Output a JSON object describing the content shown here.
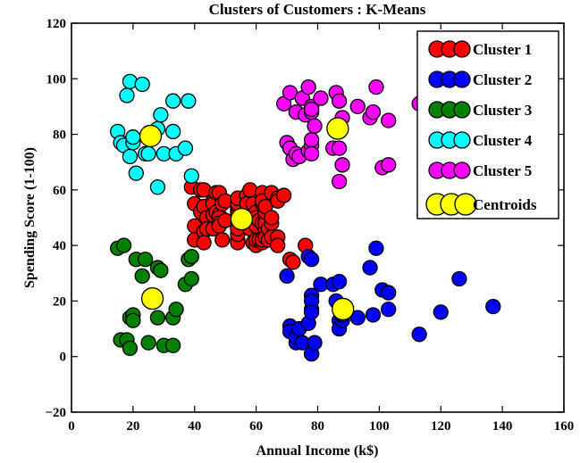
{
  "chart_data": {
    "type": "scatter",
    "title": "Clusters of Customers : K-Means",
    "xlabel": "Annual Income (k$)",
    "ylabel": "Spending Score (1-100)",
    "xlim": [
      0,
      160
    ],
    "ylim": [
      -20,
      120
    ],
    "xticks": [
      "0",
      "20",
      "40",
      "60",
      "80",
      "100",
      "120",
      "140",
      "160"
    ],
    "yticks": [
      "−20",
      "0",
      "20",
      "40",
      "60",
      "80",
      "100",
      "120"
    ],
    "grid": false,
    "legend_position": "top-right",
    "series": [
      {
        "name": "Cluster 1",
        "color": "#ff0000",
        "points": [
          [
            39,
            61
          ],
          [
            40,
            55
          ],
          [
            40,
            47
          ],
          [
            40,
            42
          ],
          [
            40,
            42
          ],
          [
            42,
            52
          ],
          [
            42,
            60
          ],
          [
            43,
            54
          ],
          [
            43,
            60
          ],
          [
            43,
            45
          ],
          [
            43,
            41
          ],
          [
            44,
            50
          ],
          [
            44,
            46
          ],
          [
            46,
            51
          ],
          [
            46,
            46
          ],
          [
            46,
            56
          ],
          [
            46,
            55
          ],
          [
            47,
            52
          ],
          [
            47,
            59
          ],
          [
            48,
            51
          ],
          [
            48,
            59
          ],
          [
            48,
            50
          ],
          [
            48,
            48
          ],
          [
            48,
            59
          ],
          [
            48,
            47
          ],
          [
            49,
            55
          ],
          [
            49,
            42
          ],
          [
            50,
            49
          ],
          [
            50,
            56
          ],
          [
            54,
            47
          ],
          [
            54,
            54
          ],
          [
            54,
            53
          ],
          [
            54,
            48
          ],
          [
            54,
            52
          ],
          [
            54,
            42
          ],
          [
            54,
            51
          ],
          [
            54,
            55
          ],
          [
            54,
            41
          ],
          [
            54,
            44
          ],
          [
            54,
            57
          ],
          [
            54,
            46
          ],
          [
            57,
            58
          ],
          [
            57,
            55
          ],
          [
            58,
            60
          ],
          [
            58,
            46
          ],
          [
            59,
            55
          ],
          [
            59,
            41
          ],
          [
            60,
            49
          ],
          [
            60,
            40
          ],
          [
            60,
            42
          ],
          [
            60,
            52
          ],
          [
            60,
            47
          ],
          [
            60,
            50
          ],
          [
            61,
            42
          ],
          [
            61,
            49
          ],
          [
            62,
            41
          ],
          [
            62,
            48
          ],
          [
            62,
            59
          ],
          [
            62,
            55
          ],
          [
            62,
            56
          ],
          [
            62,
            42
          ],
          [
            63,
            50
          ],
          [
            63,
            46
          ],
          [
            63,
            43
          ],
          [
            63,
            48
          ],
          [
            63,
            52
          ],
          [
            63,
            54
          ],
          [
            64,
            42
          ],
          [
            64,
            46
          ],
          [
            65,
            48
          ],
          [
            65,
            50
          ],
          [
            65,
            43
          ],
          [
            65,
            59
          ],
          [
            67,
            43
          ],
          [
            67,
            57
          ],
          [
            67,
            56
          ],
          [
            67,
            40
          ],
          [
            69,
            58
          ],
          [
            71,
            35
          ],
          [
            72,
            34
          ],
          [
            76,
            40
          ]
        ]
      },
      {
        "name": "Cluster 2",
        "color": "#0000ff",
        "points": [
          [
            70,
            29
          ],
          [
            71,
            11
          ],
          [
            71,
            9
          ],
          [
            73,
            5
          ],
          [
            73,
            7
          ],
          [
            74,
            10
          ],
          [
            75,
            5
          ],
          [
            77,
            12
          ],
          [
            77,
            36
          ],
          [
            78,
            22
          ],
          [
            78,
            17
          ],
          [
            78,
            20
          ],
          [
            78,
            16
          ],
          [
            78,
            1
          ],
          [
            78,
            1
          ],
          [
            78,
            35
          ],
          [
            79,
            5
          ],
          [
            81,
            26
          ],
          [
            85,
            26
          ],
          [
            86,
            20
          ],
          [
            87,
            27
          ],
          [
            87,
            13
          ],
          [
            87,
            10
          ],
          [
            88,
            13
          ],
          [
            88,
            15
          ],
          [
            93,
            14
          ],
          [
            97,
            32
          ],
          [
            98,
            15
          ],
          [
            99,
            39
          ],
          [
            101,
            24
          ],
          [
            103,
            17
          ],
          [
            103,
            23
          ],
          [
            113,
            8
          ],
          [
            120,
            16
          ],
          [
            126,
            28
          ],
          [
            137,
            18
          ]
        ]
      },
      {
        "name": "Cluster 3",
        "color": "#008000",
        "points": [
          [
            15,
            39
          ],
          [
            16,
            6
          ],
          [
            17,
            40
          ],
          [
            18,
            6
          ],
          [
            19,
            3
          ],
          [
            19,
            14
          ],
          [
            20,
            15
          ],
          [
            20,
            13
          ],
          [
            21,
            35
          ],
          [
            23,
            29
          ],
          [
            24,
            35
          ],
          [
            25,
            5
          ],
          [
            28,
            14
          ],
          [
            28,
            32
          ],
          [
            29,
            31
          ],
          [
            30,
            4
          ],
          [
            33,
            4
          ],
          [
            33,
            14
          ],
          [
            34,
            17
          ],
          [
            37,
            26
          ],
          [
            38,
            35
          ],
          [
            39,
            36
          ],
          [
            39,
            28
          ]
        ]
      },
      {
        "name": "Cluster 4",
        "color": "#00ffff",
        "points": [
          [
            15,
            81
          ],
          [
            16,
            77
          ],
          [
            17,
            76
          ],
          [
            18,
            94
          ],
          [
            19,
            72
          ],
          [
            19,
            99
          ],
          [
            20,
            77
          ],
          [
            20,
            79
          ],
          [
            21,
            66
          ],
          [
            23,
            98
          ],
          [
            24,
            73
          ],
          [
            25,
            73
          ],
          [
            28,
            82
          ],
          [
            28,
            61
          ],
          [
            29,
            87
          ],
          [
            30,
            73
          ],
          [
            33,
            92
          ],
          [
            33,
            81
          ],
          [
            34,
            73
          ],
          [
            37,
            75
          ],
          [
            38,
            92
          ],
          [
            39,
            65
          ]
        ]
      },
      {
        "name": "Cluster 5",
        "color": "#ff00ff",
        "points": [
          [
            69,
            91
          ],
          [
            70,
            77
          ],
          [
            71,
            95
          ],
          [
            71,
            75
          ],
          [
            71,
            75
          ],
          [
            72,
            71
          ],
          [
            73,
            88
          ],
          [
            73,
            73
          ],
          [
            74,
            72
          ],
          [
            75,
            93
          ],
          [
            76,
            87
          ],
          [
            77,
            97
          ],
          [
            77,
            74
          ],
          [
            78,
            90
          ],
          [
            78,
            88
          ],
          [
            78,
            76
          ],
          [
            78,
            89
          ],
          [
            78,
            78
          ],
          [
            78,
            73
          ],
          [
            79,
            83
          ],
          [
            81,
            93
          ],
          [
            85,
            75
          ],
          [
            86,
            95
          ],
          [
            87,
            63
          ],
          [
            87,
            75
          ],
          [
            87,
            92
          ],
          [
            88,
            86
          ],
          [
            88,
            69
          ],
          [
            93,
            90
          ],
          [
            97,
            86
          ],
          [
            98,
            88
          ],
          [
            99,
            97
          ],
          [
            101,
            68
          ],
          [
            103,
            85
          ],
          [
            103,
            69
          ],
          [
            113,
            91
          ]
        ]
      },
      {
        "name": "Centroids",
        "color": "#ffff00",
        "points": [
          [
            55.3,
            49.5
          ],
          [
            88.2,
            17.1
          ],
          [
            26.3,
            20.9
          ],
          [
            25.7,
            79.4
          ],
          [
            86.5,
            82.1
          ]
        ]
      }
    ]
  }
}
